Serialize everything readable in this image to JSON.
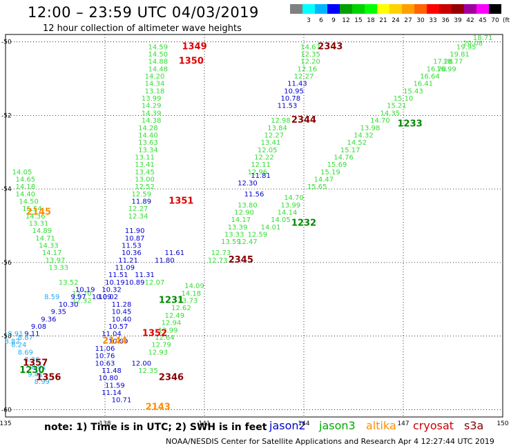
{
  "header": {
    "title": "12:00 – 23:59 UTC 04/03/2019",
    "subtitle": "12 hour collection of altimeter wave heights"
  },
  "colorbar": {
    "unit": "(ft)",
    "bins": [
      {
        "label": "",
        "color": "#808080"
      },
      {
        "label": "3",
        "color": "#00ffff"
      },
      {
        "label": "6",
        "color": "#00b4ff"
      },
      {
        "label": "9",
        "color": "#0000ff"
      },
      {
        "label": "12",
        "color": "#00a000"
      },
      {
        "label": "15",
        "color": "#00d200"
      },
      {
        "label": "18",
        "color": "#00ff00"
      },
      {
        "label": "21",
        "color": "#ffff00"
      },
      {
        "label": "24",
        "color": "#ffd200"
      },
      {
        "label": "27",
        "color": "#ffa000"
      },
      {
        "label": "30",
        "color": "#ff6400"
      },
      {
        "label": "33",
        "color": "#ff0000"
      },
      {
        "label": "36",
        "color": "#c80000"
      },
      {
        "label": "39",
        "color": "#960000"
      },
      {
        "label": "42",
        "color": "#a000a0"
      },
      {
        "label": "45",
        "color": "#ff00ff"
      },
      {
        "label": "70",
        "color": "#000000"
      }
    ]
  },
  "axes": {
    "lon_ticks": [
      "135",
      "138",
      "141",
      "144",
      "147",
      "150"
    ],
    "lat_ticks": [
      "-50",
      "-52",
      "-54",
      "-56",
      "-58",
      "-60"
    ],
    "lon_range": [
      135,
      150
    ],
    "lat_range": [
      -60.2,
      -49.8
    ],
    "grid": true
  },
  "footer": {
    "note": "note:  1) Time is in UTC;  2) SWH is in feet",
    "credit": "NOAA/NESDIS Center for Satellite Applications and Research   Apr  4 12:27:44 UTC 2019",
    "legend": [
      {
        "name": "jason2",
        "color": "#0000cc"
      },
      {
        "name": "jason3",
        "color": "#00aa00"
      },
      {
        "name": "altika",
        "color": "#ff8c00"
      },
      {
        "name": "cryosat",
        "color": "#cc0000"
      },
      {
        "name": "s3a",
        "color": "#880000"
      }
    ]
  },
  "chart_data": {
    "type": "scatter",
    "xlabel": "",
    "ylabel": "",
    "xlim": [
      135,
      150
    ],
    "ylim": [
      -60.2,
      -49.8
    ],
    "time_labels": [
      {
        "text": "1349",
        "lon": 140.7,
        "lat": -50.2,
        "color": "#dd0000"
      },
      {
        "text": "1350",
        "lon": 140.6,
        "lat": -50.6,
        "color": "#dd0000"
      },
      {
        "text": "2343",
        "lon": 144.8,
        "lat": -50.2,
        "color": "#880000"
      },
      {
        "text": "2344",
        "lon": 144.0,
        "lat": -52.2,
        "color": "#880000"
      },
      {
        "text": "1233",
        "lon": 147.2,
        "lat": -52.3,
        "color": "#008800"
      },
      {
        "text": "1351",
        "lon": 140.3,
        "lat": -54.4,
        "color": "#dd0000"
      },
      {
        "text": "2145",
        "lon": 136.0,
        "lat": -54.7,
        "color": "#ff8c00"
      },
      {
        "text": "1232",
        "lon": 144.0,
        "lat": -55.0,
        "color": "#008800"
      },
      {
        "text": "2345",
        "lon": 142.1,
        "lat": -56.0,
        "color": "#880000"
      },
      {
        "text": "1231",
        "lon": 140.0,
        "lat": -57.1,
        "color": "#008800"
      },
      {
        "text": "1352",
        "lon": 139.5,
        "lat": -58.0,
        "color": "#dd0000"
      },
      {
        "text": "2144",
        "lon": 138.3,
        "lat": -58.2,
        "color": "#ff8c00"
      },
      {
        "text": "1357",
        "lon": 135.9,
        "lat": -58.8,
        "color": "#880000"
      },
      {
        "text": "1230",
        "lon": 135.8,
        "lat": -59.0,
        "color": "#008800"
      },
      {
        "text": "1356",
        "lon": 136.3,
        "lat": -59.2,
        "color": "#880000"
      },
      {
        "text": "2346",
        "lon": 140.0,
        "lat": -59.2,
        "color": "#880000"
      },
      {
        "text": "2143",
        "lon": 139.6,
        "lat": -60.0,
        "color": "#ff8c00"
      }
    ],
    "series": [
      {
        "name": "jason3",
        "color": "#33dd33",
        "points": [
          [
            "14.59",
            139.6,
            -50.2
          ],
          [
            "14.50",
            139.6,
            -50.4
          ],
          [
            "14.88",
            139.6,
            -50.6
          ],
          [
            "14.48",
            139.6,
            -50.8
          ],
          [
            "14.20",
            139.5,
            -51.0
          ],
          [
            "14.34",
            139.5,
            -51.2
          ],
          [
            "13.18",
            139.5,
            -51.4
          ],
          [
            "13.99",
            139.4,
            -51.6
          ],
          [
            "14.29",
            139.4,
            -51.8
          ],
          [
            "14.39",
            139.4,
            -52.0
          ],
          [
            "14.38",
            139.4,
            -52.2
          ],
          [
            "14.28",
            139.3,
            -52.4
          ],
          [
            "14.40",
            139.3,
            -52.6
          ],
          [
            "13.63",
            139.3,
            -52.8
          ],
          [
            "13.34",
            139.3,
            -53.0
          ],
          [
            "13.11",
            139.2,
            -53.2
          ],
          [
            "13.41",
            139.2,
            -53.4
          ],
          [
            "13.45",
            139.2,
            -53.6
          ],
          [
            "13.00",
            139.2,
            -53.8
          ],
          [
            "12.52",
            139.2,
            -54.0
          ],
          [
            "12.59",
            139.1,
            -54.2
          ],
          [
            "12.27",
            139.0,
            -54.6
          ],
          [
            "12.34",
            139.0,
            -54.8
          ],
          [
            "14.05",
            135.5,
            -53.6
          ],
          [
            "14.65",
            135.6,
            -53.8
          ],
          [
            "14.18",
            135.6,
            -54.0
          ],
          [
            "14.40",
            135.6,
            -54.2
          ],
          [
            "14.50",
            135.7,
            -54.4
          ],
          [
            "15.54",
            135.8,
            -54.6
          ],
          [
            "14.36",
            135.9,
            -54.8
          ],
          [
            "13.31",
            136.0,
            -55.0
          ],
          [
            "14.89",
            136.1,
            -55.2
          ],
          [
            "14.71",
            136.2,
            -55.4
          ],
          [
            "14.33",
            136.3,
            -55.6
          ],
          [
            "14.17",
            136.4,
            -55.8
          ],
          [
            "13.97",
            136.5,
            -56.0
          ],
          [
            "13.33",
            136.6,
            -56.2
          ],
          [
            "13.52",
            136.9,
            -56.6
          ],
          [
            "12.70",
            137.3,
            -56.9
          ],
          [
            "12.32",
            137.3,
            -57.1
          ],
          [
            "12.07",
            139.5,
            -56.6
          ],
          [
            "14.09",
            140.7,
            -56.7
          ],
          [
            "14.18",
            140.6,
            -56.9
          ],
          [
            "13.73",
            140.5,
            -57.1
          ],
          [
            "12.62",
            140.3,
            -57.3
          ],
          [
            "12.49",
            140.1,
            -57.5
          ],
          [
            "12.94",
            140.0,
            -57.7
          ],
          [
            "13.99",
            139.9,
            -57.9
          ],
          [
            "12.64",
            139.8,
            -58.1
          ],
          [
            "12.79",
            139.7,
            -58.3
          ],
          [
            "12.93",
            139.6,
            -58.5
          ],
          [
            "12.35",
            139.3,
            -59.0
          ],
          [
            "14.67",
            144.2,
            -50.2
          ],
          [
            "12.35",
            144.2,
            -50.4
          ],
          [
            "12.20",
            144.2,
            -50.6
          ],
          [
            "12.16",
            144.1,
            -50.8
          ],
          [
            "12.27",
            144.0,
            -51.0
          ],
          [
            "12.98",
            143.3,
            -52.2
          ],
          [
            "13.84",
            143.2,
            -52.4
          ],
          [
            "12.27",
            143.1,
            -52.6
          ],
          [
            "13.41",
            143.0,
            -52.8
          ],
          [
            "12.05",
            142.9,
            -53.0
          ],
          [
            "12.22",
            142.8,
            -53.2
          ],
          [
            "12.11",
            142.7,
            -53.4
          ],
          [
            "12.96",
            142.6,
            -53.6
          ],
          [
            "13.80",
            142.3,
            -54.5
          ],
          [
            "12.90",
            142.2,
            -54.7
          ],
          [
            "14.17",
            142.1,
            -54.9
          ],
          [
            "13.39",
            142.0,
            -55.1
          ],
          [
            "13.33",
            141.9,
            -55.3
          ],
          [
            "13.59",
            141.8,
            -55.5
          ],
          [
            "12.73",
            141.5,
            -55.8
          ],
          [
            "12.73",
            141.4,
            -56.0
          ],
          [
            "14.70",
            143.7,
            -54.3
          ],
          [
            "13.99",
            143.6,
            -54.5
          ],
          [
            "14.14",
            143.5,
            -54.7
          ],
          [
            "14.05",
            143.3,
            -54.9
          ],
          [
            "14.01",
            143.0,
            -55.1
          ],
          [
            "12.59",
            142.6,
            -55.3
          ],
          [
            "12.47",
            142.3,
            -55.5
          ],
          [
            "15.65",
            144.4,
            -54.0
          ],
          [
            "14.47",
            144.6,
            -53.8
          ],
          [
            "15.19",
            144.8,
            -53.6
          ],
          [
            "15.69",
            145.0,
            -53.4
          ],
          [
            "14.76",
            145.2,
            -53.2
          ],
          [
            "15.17",
            145.4,
            -53.0
          ],
          [
            "14.52",
            145.6,
            -52.8
          ],
          [
            "14.32",
            145.8,
            -52.6
          ],
          [
            "13.98",
            146.0,
            -52.4
          ],
          [
            "14.70",
            146.3,
            -52.2
          ],
          [
            "14.35",
            146.6,
            -52.0
          ],
          [
            "15.21",
            146.8,
            -51.8
          ],
          [
            "15.10",
            147.0,
            -51.6
          ],
          [
            "15.43",
            147.3,
            -51.4
          ],
          [
            "16.41",
            147.6,
            -51.2
          ],
          [
            "16.64",
            147.8,
            -51.0
          ],
          [
            "16.78",
            148.0,
            -50.8
          ],
          [
            "17.28",
            148.2,
            -50.6
          ],
          [
            "16.99",
            148.3,
            -50.8
          ],
          [
            "18.77",
            148.5,
            -50.6
          ],
          [
            "19.81",
            148.7,
            -50.4
          ],
          [
            "19.95",
            148.9,
            -50.2
          ],
          [
            "20.08",
            149.1,
            -50.1
          ],
          [
            "18.71",
            149.4,
            -49.95
          ]
        ]
      },
      {
        "name": "jason2",
        "color": "#0000cc",
        "points": [
          [
            "11.43",
            143.8,
            -51.2
          ],
          [
            "10.95",
            143.7,
            -51.4
          ],
          [
            "10.78",
            143.6,
            -51.6
          ],
          [
            "11.53",
            143.5,
            -51.8
          ],
          [
            "11.81",
            142.7,
            -53.7
          ],
          [
            "12.30",
            142.3,
            -53.9
          ],
          [
            "11.56",
            142.5,
            -54.2
          ],
          [
            "11.89",
            139.1,
            -54.4
          ],
          [
            "11.90",
            138.9,
            -55.2
          ],
          [
            "10.87",
            138.9,
            -55.4
          ],
          [
            "11.53",
            138.8,
            -55.6
          ],
          [
            "10.36",
            138.8,
            -55.8
          ],
          [
            "11.21",
            138.7,
            -56.0
          ],
          [
            "11.09",
            138.6,
            -56.2
          ],
          [
            "11.51",
            138.4,
            -56.4
          ],
          [
            "10.19",
            138.3,
            -56.6
          ],
          [
            "10.32",
            138.2,
            -56.8
          ],
          [
            "10.02",
            138.1,
            -57.0
          ],
          [
            "10.09",
            137.9,
            -57.0
          ],
          [
            "10.19",
            137.4,
            -56.8
          ],
          [
            "9.97",
            137.2,
            -57.0
          ],
          [
            "10.30",
            136.9,
            -57.2
          ],
          [
            "9.35",
            136.6,
            -57.4
          ],
          [
            "9.36",
            136.3,
            -57.6
          ],
          [
            "9.08",
            136.0,
            -57.8
          ],
          [
            "9.11",
            135.8,
            -58.0
          ],
          [
            "11.28",
            138.5,
            -57.2
          ],
          [
            "10.45",
            138.5,
            -57.4
          ],
          [
            "10.40",
            138.5,
            -57.6
          ],
          [
            "10.57",
            138.4,
            -57.8
          ],
          [
            "11.04",
            138.2,
            -58.0
          ],
          [
            "10.09",
            138.4,
            -58.2
          ],
          [
            "11.06",
            138.0,
            -58.4
          ],
          [
            "10.76",
            138.0,
            -58.6
          ],
          [
            "10.63",
            138.0,
            -58.8
          ],
          [
            "11.48",
            138.2,
            -59.0
          ],
          [
            "10.80",
            138.1,
            -59.2
          ],
          [
            "11.59",
            138.3,
            -59.4
          ],
          [
            "11.14",
            138.2,
            -59.6
          ],
          [
            "10.71",
            138.5,
            -59.8
          ],
          [
            "11.61",
            140.1,
            -55.8
          ],
          [
            "11.80",
            139.8,
            -56.0
          ],
          [
            "11.31",
            139.2,
            -56.4
          ],
          [
            "10.89",
            138.9,
            -56.6
          ],
          [
            "12.00",
            139.1,
            -58.8
          ]
        ]
      },
      {
        "name": "altika",
        "color": "#22aaee",
        "points": [
          [
            "8.59",
            136.4,
            -57.0
          ],
          [
            "8.91",
            135.3,
            -58.0
          ],
          [
            "8.87",
            135.6,
            -58.1
          ],
          [
            "8.82",
            135.2,
            -58.2
          ],
          [
            "8.24",
            135.4,
            -58.3
          ],
          [
            "8.69",
            135.6,
            -58.5
          ],
          [
            "8.36",
            135.8,
            -58.7
          ],
          [
            "8.91",
            136.0,
            -58.9
          ],
          [
            "9.41",
            135.9,
            -59.1
          ],
          [
            "8.99",
            136.1,
            -59.3
          ]
        ]
      }
    ]
  }
}
